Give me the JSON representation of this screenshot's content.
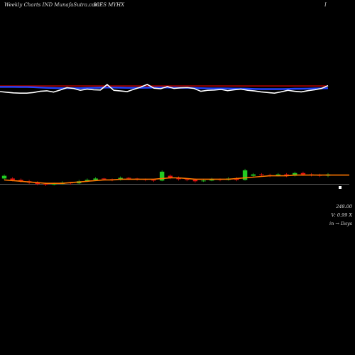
{
  "header": {
    "left": "Weekly Charts IND  MunafaSutra.com",
    "middle": "ICES MYHX",
    "right": "I"
  },
  "info": {
    "price": "248.00",
    "volume": "V: 0.99 X",
    "note": "in → Days"
  },
  "colors": {
    "up": "#22cc22",
    "down": "#ee1111",
    "ma": "#ff7700",
    "line_white": "#ffffff",
    "line_blue": "#2244ff",
    "line_red": "#cc0000",
    "baseline": "#bbbbbb"
  },
  "chart_data": [
    {
      "type": "line",
      "series": [
        {
          "values": [
            0.5,
            0.46,
            0.42,
            0.4,
            0.4,
            0.44,
            0.52,
            0.55,
            0.47,
            0.6,
            0.75,
            0.7,
            0.58,
            0.66,
            0.62,
            0.6,
            0.95,
            0.58,
            0.54,
            0.5,
            0.65,
            0.78,
            0.96,
            0.72,
            0.68,
            0.82,
            0.7,
            0.74,
            0.76,
            0.7,
            0.52,
            0.58,
            0.6,
            0.64,
            0.56,
            0.62,
            0.66,
            0.58,
            0.54,
            0.48,
            0.44,
            0.4,
            0.48,
            0.58,
            0.52,
            0.48,
            0.56,
            0.62,
            0.7,
            0.88
          ]
        },
        {
          "values": [
            0.8,
            0.8,
            0.8,
            0.79,
            0.79,
            0.78,
            0.76,
            0.74,
            0.73,
            0.72,
            0.72,
            0.72,
            0.72,
            0.73,
            0.74,
            0.75,
            0.76,
            0.76,
            0.75,
            0.74,
            0.74,
            0.74,
            0.75,
            0.76,
            0.76,
            0.76,
            0.75,
            0.74,
            0.74,
            0.73,
            0.72,
            0.71,
            0.7,
            0.7,
            0.7,
            0.69,
            0.69,
            0.68,
            0.67,
            0.66,
            0.66,
            0.66,
            0.66,
            0.67,
            0.68,
            0.68,
            0.69,
            0.7,
            0.71,
            0.72
          ]
        },
        {
          "values": [
            0.86,
            0.86,
            0.86,
            0.86,
            0.86,
            0.86,
            0.86,
            0.86,
            0.86,
            0.86,
            0.86,
            0.86,
            0.86,
            0.86,
            0.86,
            0.86,
            0.86,
            0.86,
            0.86,
            0.86,
            0.86,
            0.86,
            0.86,
            0.86,
            0.86,
            0.86,
            0.86,
            0.86,
            0.86,
            0.86,
            0.86,
            0.86,
            0.86,
            0.86,
            0.86,
            0.86,
            0.86,
            0.86,
            0.86,
            0.86,
            0.86,
            0.86,
            0.86,
            0.86,
            0.86,
            0.86,
            0.86,
            0.86,
            0.86,
            0.86
          ]
        }
      ]
    },
    {
      "type": "candlestick",
      "candles": [
        [
          46,
          50,
          52,
          44
        ],
        [
          46,
          44,
          48,
          42
        ],
        [
          44,
          42,
          46,
          40
        ],
        [
          42,
          40,
          44,
          38
        ],
        [
          40,
          38,
          42,
          36
        ],
        [
          38,
          37,
          40,
          35
        ],
        [
          37,
          38,
          40,
          36
        ],
        [
          38,
          40,
          42,
          37
        ],
        [
          40,
          39,
          41,
          37
        ],
        [
          39,
          42,
          44,
          38
        ],
        [
          42,
          44,
          46,
          41
        ],
        [
          44,
          46,
          48,
          43
        ],
        [
          46,
          45,
          47,
          43
        ],
        [
          45,
          44,
          46,
          42
        ],
        [
          44,
          47,
          49,
          43
        ],
        [
          47,
          46,
          48,
          44
        ],
        [
          46,
          45,
          47,
          43
        ],
        [
          45,
          44,
          46,
          42
        ],
        [
          44,
          43,
          45,
          41
        ],
        [
          43,
          56,
          58,
          42
        ],
        [
          50,
          47,
          52,
          45
        ],
        [
          47,
          45,
          49,
          43
        ],
        [
          45,
          44,
          46,
          42
        ],
        [
          44,
          42,
          46,
          40
        ],
        [
          42,
          43,
          45,
          41
        ],
        [
          43,
          45,
          47,
          42
        ],
        [
          45,
          44,
          46,
          42
        ],
        [
          44,
          46,
          48,
          43
        ],
        [
          46,
          44,
          48,
          42
        ],
        [
          44,
          58,
          60,
          43
        ],
        [
          50,
          52,
          54,
          48
        ],
        [
          52,
          51,
          54,
          49
        ],
        [
          51,
          50,
          53,
          48
        ],
        [
          50,
          52,
          54,
          49
        ],
        [
          52,
          50,
          54,
          48
        ],
        [
          50,
          54,
          56,
          49
        ],
        [
          54,
          52,
          56,
          50
        ],
        [
          52,
          51,
          54,
          49
        ],
        [
          51,
          50,
          53,
          48
        ],
        [
          50,
          52,
          54,
          48
        ]
      ],
      "ma": [
        44,
        43,
        42,
        41,
        40,
        39,
        39,
        39,
        40,
        41,
        42,
        43,
        44,
        44,
        45,
        45,
        45,
        45,
        45,
        46,
        47,
        47,
        46,
        45,
        45,
        45,
        45,
        45,
        46,
        47,
        48,
        49,
        50,
        50,
        50,
        51,
        51,
        51,
        51,
        51
      ]
    }
  ]
}
